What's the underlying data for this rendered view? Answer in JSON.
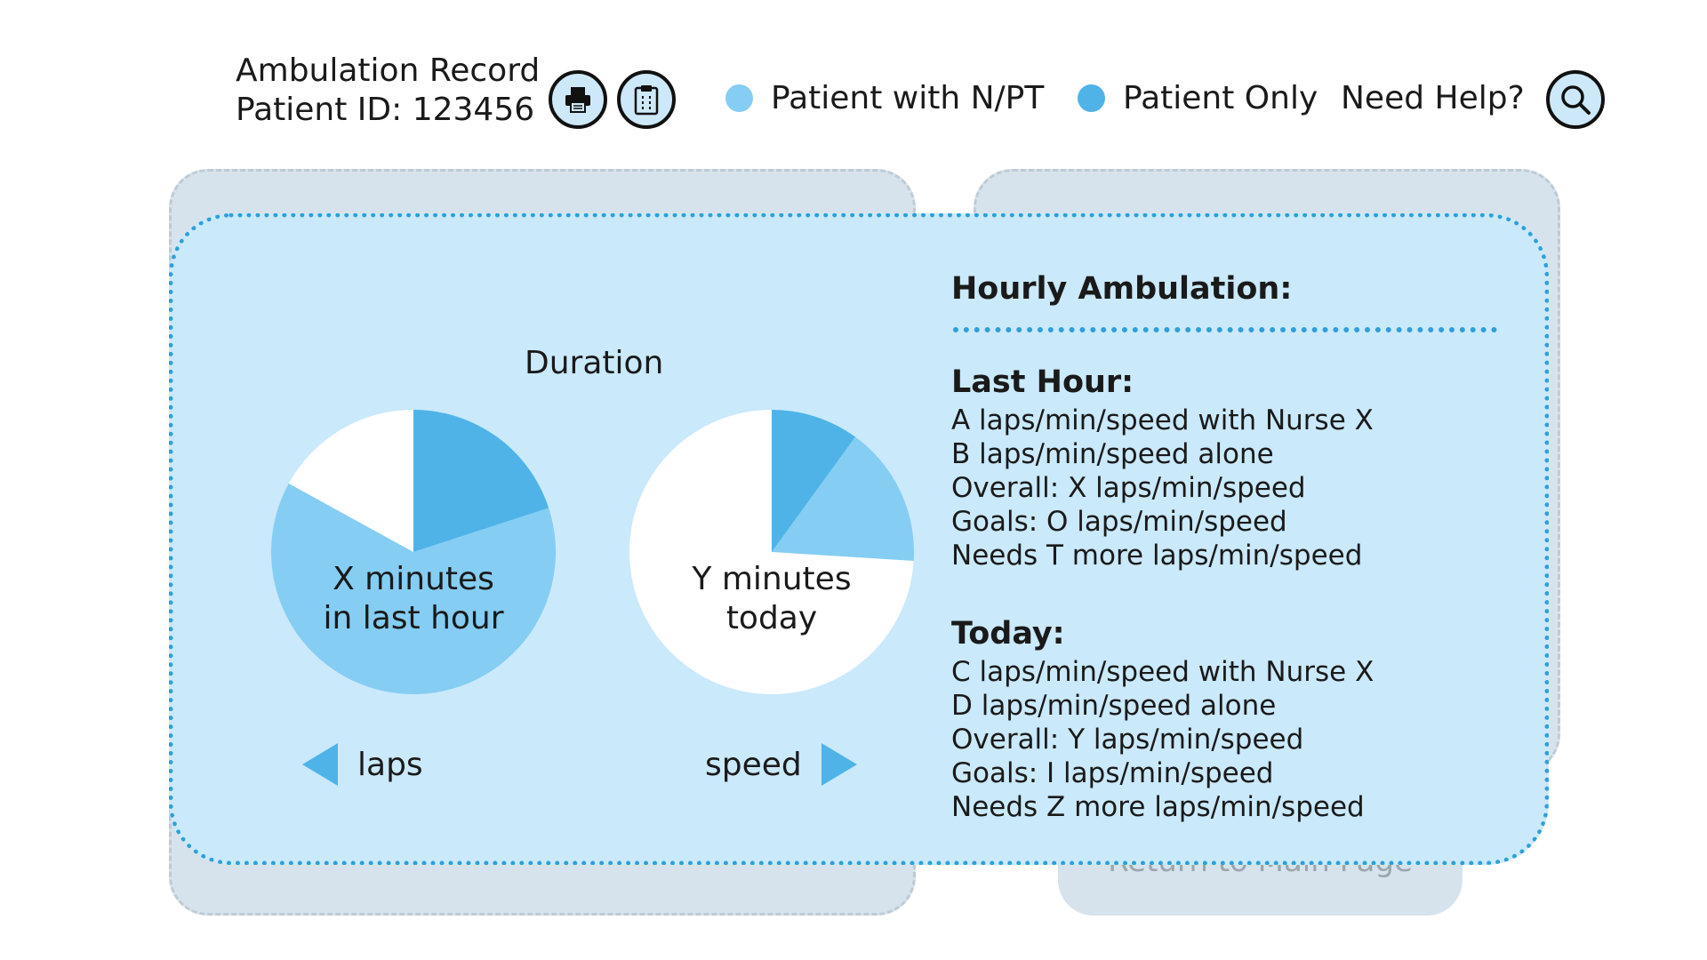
{
  "header": {
    "title": "Ambulation Record",
    "patient_id": "Patient ID: 123456",
    "print_icon": "printer-icon",
    "clipboard_icon": "clipboard-icon",
    "legend": [
      {
        "label": "Patient with N/PT",
        "color": "#85cdf3"
      },
      {
        "label": "Patient Only",
        "color": "#4fb3e8"
      }
    ],
    "help_label": "Need Help?",
    "help_icon": "search-icon"
  },
  "background": {
    "return_button_label": "Return to Main Page"
  },
  "duration": {
    "title": "Duration",
    "pies": [
      {
        "label_line1": "X minutes",
        "label_line2": "in last hour",
        "slices": [
          {
            "name": "Patient Only",
            "fraction": 0.2,
            "color": "#4fb3e8"
          },
          {
            "name": "Patient with N/PT",
            "fraction": 0.63,
            "color": "#85cdf3"
          },
          {
            "name": "Remaining",
            "fraction": 0.17,
            "color": "#ffffff"
          }
        ]
      },
      {
        "label_line1": "Y minutes",
        "label_line2": "today",
        "slices": [
          {
            "name": "Patient Only",
            "fraction": 0.1,
            "color": "#4fb3e8"
          },
          {
            "name": "Patient with N/PT",
            "fraction": 0.16,
            "color": "#85cdf3"
          },
          {
            "name": "Remaining",
            "fraction": 0.74,
            "color": "#ffffff"
          }
        ]
      }
    ],
    "nav_prev_label": "laps",
    "nav_next_label": "speed"
  },
  "stats": {
    "title": "Hourly Ambulation:",
    "last_hour": {
      "heading": "Last Hour:",
      "lines": [
        "A laps/min/speed with Nurse X",
        "B laps/min/speed alone",
        "Overall: X laps/min/speed",
        "Goals: O laps/min/speed",
        "Needs T more laps/min/speed"
      ]
    },
    "today": {
      "heading": "Today:",
      "lines": [
        "C laps/min/speed with Nurse X",
        "D laps/min/speed alone",
        "Overall: Y laps/min/speed",
        "Goals: I laps/min/speed",
        "Needs Z more laps/min/speed"
      ]
    }
  }
}
